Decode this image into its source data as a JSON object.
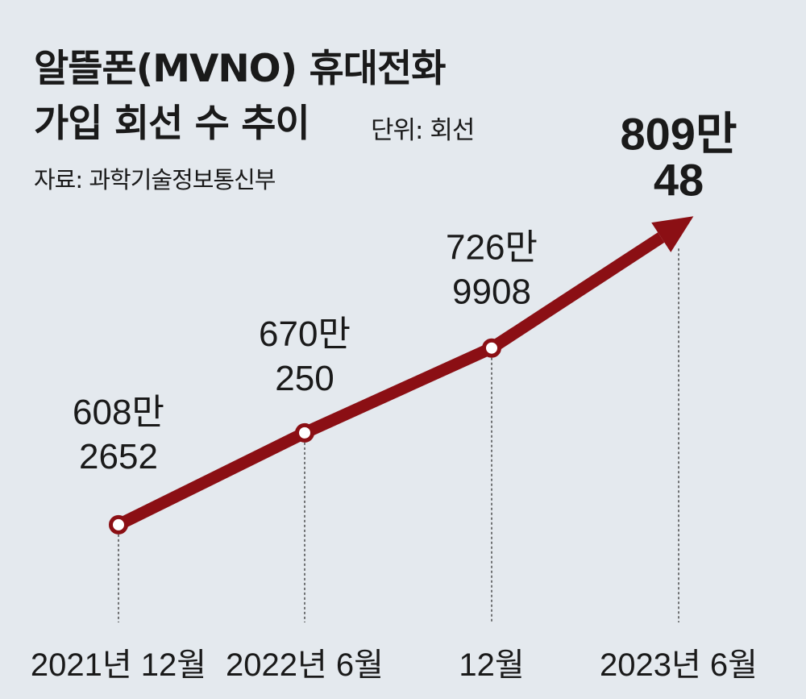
{
  "title_line1": "알뜰폰(MVNO) 휴대전화",
  "title_line2": "가입 회선 수 추이",
  "unit": "단위: 회선",
  "source": "자료: 과학기술정보통신부",
  "colors": {
    "line": "#8b0f14",
    "background": "#e4e9ee",
    "text": "#1a1a1a"
  },
  "chart_data": {
    "type": "line",
    "title": "알뜰폰(MVNO) 휴대전화 가입 회선 수 추이",
    "ylabel": "회선",
    "categories": [
      "2021년 12월",
      "2022년 6월",
      "2022년 12월",
      "2023년 6월"
    ],
    "tick_labels": [
      "2021년 12월",
      "2022년 6월",
      "12월",
      "2023년 6월"
    ],
    "values": [
      6082652,
      6700250,
      7269908,
      8090048
    ],
    "data_labels": [
      [
        "608만",
        "2652"
      ],
      [
        "670만",
        "250"
      ],
      [
        "726만",
        "9908"
      ],
      [
        "809만",
        "48"
      ]
    ],
    "ylim": [
      5600000,
      8200000
    ],
    "grid": false
  }
}
